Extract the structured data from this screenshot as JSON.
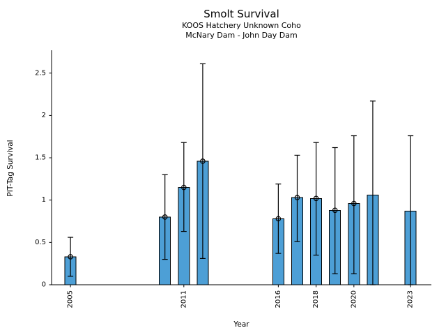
{
  "chart_data": {
    "type": "bar",
    "title": "Smolt Survival",
    "subtitle1": "KOOS Hatchery Unknown Coho",
    "subtitle2": "McNary Dam - John Day Dam",
    "xlabel": "Year",
    "ylabel": "PIT-Tag Survival",
    "xlim": [
      2004,
      2024.1
    ],
    "ylim": [
      0,
      2.77
    ],
    "x_ticks": [
      2005,
      2011,
      2016,
      2018,
      2020,
      2023
    ],
    "y_ticks": [
      0,
      0.5,
      1,
      1.5,
      2,
      2.5
    ],
    "grid": false,
    "legend": "none",
    "bar_color": "#4d9fd6",
    "bar_edge_color": "#000000",
    "error_bar_color": "#000000",
    "marker_style": "open-circle at point estimate (absent for 2021 and 2023)",
    "series": [
      {
        "year": 2005,
        "value": 0.33,
        "ci_low": 0.1,
        "ci_high": 0.56,
        "marker": true
      },
      {
        "year": 2010,
        "value": 0.8,
        "ci_low": 0.3,
        "ci_high": 1.3,
        "marker": true
      },
      {
        "year": 2011,
        "value": 1.15,
        "ci_low": 0.63,
        "ci_high": 1.68,
        "marker": true
      },
      {
        "year": 2012,
        "value": 1.46,
        "ci_low": 0.31,
        "ci_high": 2.61,
        "marker": true
      },
      {
        "year": 2016,
        "value": 0.78,
        "ci_low": 0.37,
        "ci_high": 1.19,
        "marker": true
      },
      {
        "year": 2017,
        "value": 1.03,
        "ci_low": 0.51,
        "ci_high": 1.53,
        "marker": true
      },
      {
        "year": 2018,
        "value": 1.02,
        "ci_low": 0.35,
        "ci_high": 1.68,
        "marker": true
      },
      {
        "year": 2019,
        "value": 0.88,
        "ci_low": 0.13,
        "ci_high": 1.62,
        "marker": true
      },
      {
        "year": 2020,
        "value": 0.96,
        "ci_low": 0.13,
        "ci_high": 1.76,
        "marker": true
      },
      {
        "year": 2021,
        "value": 1.06,
        "ci_low": 0.0,
        "ci_high": 2.17,
        "marker": false
      },
      {
        "year": 2023,
        "value": 0.87,
        "ci_low": 0.0,
        "ci_high": 1.76,
        "marker": false
      }
    ]
  }
}
